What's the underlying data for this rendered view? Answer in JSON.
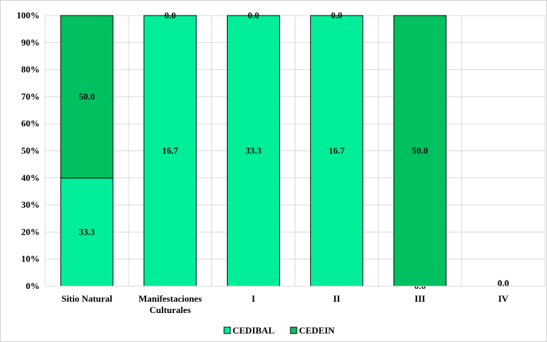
{
  "chart_data": {
    "type": "bar",
    "stacked_percent": true,
    "categories": [
      "Sitio Natural",
      "Manifestaciones Culturales",
      "I",
      "II",
      "III",
      "IV"
    ],
    "category_lines": [
      [
        "Sitio Natural"
      ],
      [
        "Manifestaciones",
        "Culturales"
      ],
      [
        "I"
      ],
      [
        "II"
      ],
      [
        "III"
      ],
      [
        "IV"
      ]
    ],
    "series": [
      {
        "name": "CEDIBAL",
        "values": [
          33.3,
          16.7,
          33.3,
          16.7,
          0.0,
          0.0
        ],
        "color": "#00ee99"
      },
      {
        "name": "CEDEIN",
        "values": [
          50.0,
          0.0,
          0.0,
          0.0,
          50.0,
          0.0
        ],
        "color": "#00c060"
      }
    ],
    "y_ticks": [
      "0%",
      "10%",
      "20%",
      "30%",
      "40%",
      "50%",
      "60%",
      "70%",
      "80%",
      "90%",
      "100%"
    ],
    "ylim": [
      0,
      100
    ],
    "grid": true,
    "legend_position": "bottom"
  }
}
